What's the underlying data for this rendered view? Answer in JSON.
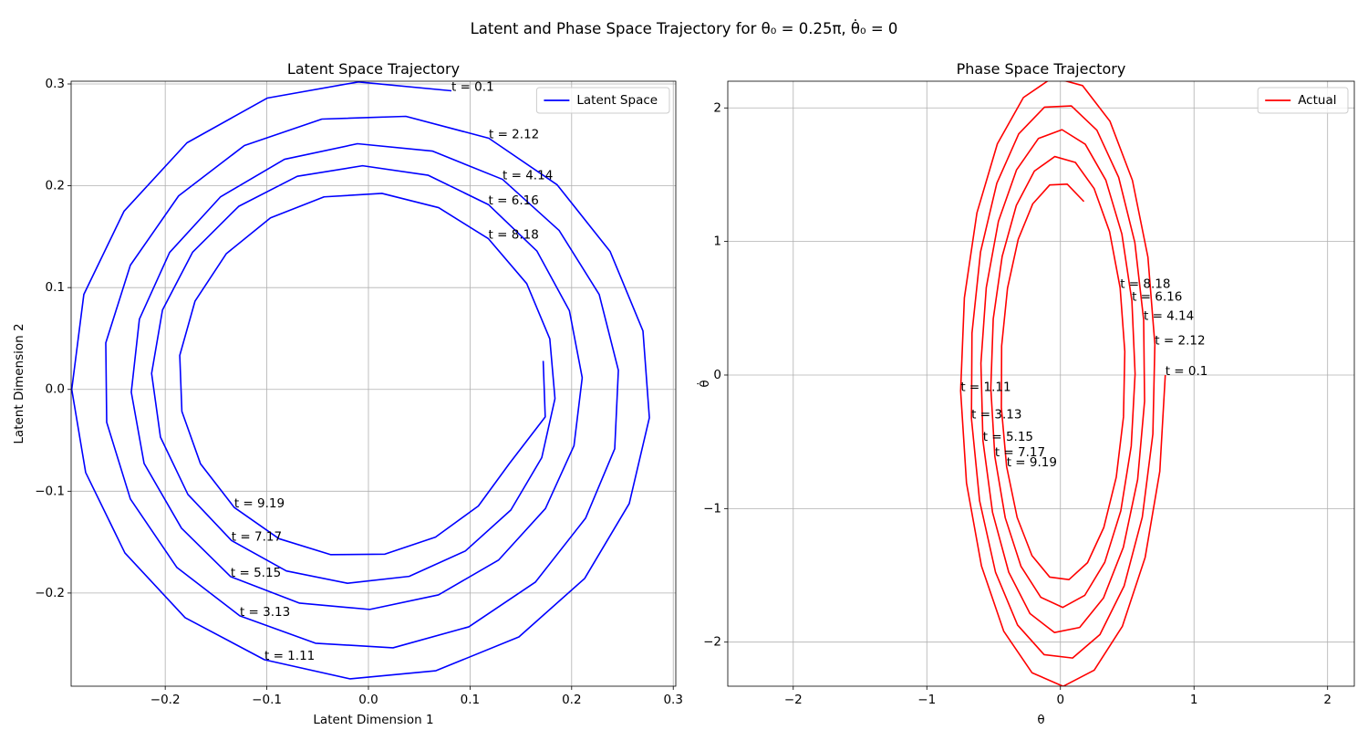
{
  "suptitle": "Latent and Phase Space Trajectory for θ₀ = 0.25π, θ̇₀ = 0",
  "chart_data": [
    {
      "type": "line",
      "title": "Latent Space Trajectory",
      "xlabel": "Latent Dimension 1",
      "ylabel": "Latent Dimension 2",
      "x": [
        0.0817,
        -0.0099,
        -0.0997,
        -0.1786,
        -0.2406,
        -0.2801,
        -0.292,
        -0.2783,
        -0.2397,
        -0.1804,
        -0.1023,
        -0.018,
        0.0664,
        0.1481,
        0.2128,
        0.2567,
        0.2765,
        0.2702,
        0.2379,
        0.1858,
        0.1185,
        0.0368,
        -0.0458,
        -0.1221,
        -0.1868,
        -0.2343,
        -0.2585,
        -0.2576,
        -0.2343,
        -0.1885,
        -0.1266,
        -0.0521,
        0.0242,
        0.0988,
        0.1643,
        0.2137,
        0.2424,
        0.246,
        0.2271,
        0.1877,
        0.132,
        0.0629,
        -0.0108,
        -0.0826,
        -0.1455,
        -0.1957,
        -0.2254,
        -0.2334,
        -0.2208,
        -0.184,
        -0.1356,
        -0.0678,
        0.0013,
        0.0689,
        0.1282,
        0.1742,
        0.2023,
        0.2104,
        0.1978,
        0.1659,
        0.1181,
        0.0589,
        -0.0058,
        -0.07,
        -0.1277,
        -0.1731,
        -0.2027,
        -0.2134,
        -0.2047,
        -0.1777,
        -0.1348,
        -0.0808,
        -0.0206,
        0.0401,
        0.0954,
        0.1402,
        0.1706,
        0.1836,
        0.1785,
        0.1558,
        0.1181,
        0.0691,
        0.0133,
        -0.0437,
        -0.0964,
        -0.14,
        -0.1707,
        -0.1857,
        -0.1836,
        -0.1653,
        -0.1321,
        -0.0881,
        -0.037,
        0.0162,
        0.066,
        0.1082,
        0.1388,
        0.174,
        0.172
      ],
      "series": [
        {
          "name": "Latent Space",
          "color": "#0000ff",
          "values": [
            0.2933,
            0.302,
            0.2861,
            0.2422,
            0.1749,
            0.0933,
            0,
            -0.0816,
            -0.1606,
            -0.2242,
            -0.2655,
            -0.2843,
            -0.2763,
            -0.2431,
            -0.1857,
            -0.1121,
            -0.0278,
            0.0574,
            0.1354,
            0.2009,
            0.2467,
            0.2682,
            0.2655,
            0.2395,
            0.1901,
            0.122,
            0.0457,
            -0.0323,
            -0.1076,
            -0.1749,
            -0.2224,
            -0.2493,
            -0.2538,
            -0.2332,
            -0.1893,
            -0.1265,
            -0.0583,
            0.0188,
            0.0933,
            0.1561,
            0.2063,
            0.2341,
            0.2413,
            0.226,
            0.1892,
            0.1345,
            0.0691,
            -0.0027,
            -0.0727,
            -0.1363,
            -0.1839,
            -0.2099,
            -0.2161,
            -0.2018,
            -0.1675,
            -0.117,
            -0.0553,
            0.0115,
            0.0773,
            0.1358,
            0.1815,
            0.2103,
            0.2197,
            0.2093,
            0.1798,
            0.1347,
            0.078,
            0.0157,
            -0.0468,
            -0.1031,
            -0.1484,
            -0.1783,
            -0.1904,
            -0.1836,
            -0.1587,
            -0.1184,
            -0.067,
            -0.009,
            0.0497,
            0.1039,
            0.148,
            0.1785,
            0.1925,
            0.1891,
            0.1685,
            0.1332,
            0.0866,
            0.0334,
            -0.0216,
            -0.073,
            -0.1159,
            -0.1466,
            -0.1623,
            -0.1618,
            -0.1451,
            -0.1145,
            -0.0727,
            -0.027,
            0.028
          ]
        }
      ],
      "annotations": [
        {
          "text": "t = 0.1",
          "x": 0.0817,
          "y": 0.2933
        },
        {
          "text": "t = 1.11",
          "x": -0.1023,
          "y": -0.2655
        },
        {
          "text": "t = 2.12",
          "x": 0.1185,
          "y": 0.2467
        },
        {
          "text": "t = 3.13",
          "x": -0.1266,
          "y": -0.2224
        },
        {
          "text": "t = 4.14",
          "x": 0.132,
          "y": 0.2063
        },
        {
          "text": "t = 5.15",
          "x": -0.1356,
          "y": -0.1839
        },
        {
          "text": "t = 6.16",
          "x": 0.1181,
          "y": 0.1815
        },
        {
          "text": "t = 7.17",
          "x": -0.1348,
          "y": -0.1484
        },
        {
          "text": "t = 8.18",
          "x": 0.1181,
          "y": 0.148
        },
        {
          "text": "t = 9.19",
          "x": -0.1321,
          "y": -0.1159
        }
      ],
      "xlim": [
        -0.2926,
        0.3025
      ],
      "ylim": [
        -0.2915,
        0.3027
      ],
      "xticks": [
        {
          "value": -0.2,
          "label": "−0.2"
        },
        {
          "value": -0.1,
          "label": "−0.1"
        },
        {
          "value": 0,
          "label": "0.0"
        },
        0.1,
        0.2,
        0.3
      ],
      "yticks": [
        {
          "value": -0.2,
          "label": "−0.2"
        },
        {
          "value": -0.1,
          "label": "−0.1"
        },
        {
          "value": 0,
          "label": "0.0"
        },
        0.1,
        0.2,
        0.3
      ],
      "grid": true,
      "legend": "upper right"
    },
    {
      "type": "line",
      "title": "Phase Space Trajectory",
      "xlabel": "θ",
      "ylabel": "θ̇",
      "x": [
        0.785,
        0.744,
        0.634,
        0.464,
        0.253,
        0.02,
        -0.213,
        -0.424,
        -0.591,
        -0.703,
        -0.747,
        -0.719,
        -0.625,
        -0.472,
        -0.277,
        -0.057,
        0.166,
        0.371,
        0.539,
        0.655,
        0.707,
        0.692,
        0.613,
        0.477,
        0.296,
        0.091,
        -0.122,
        -0.321,
        -0.486,
        -0.605,
        -0.666,
        -0.662,
        -0.598,
        -0.476,
        -0.312,
        -0.119,
        0.082,
        0.273,
        0.436,
        0.557,
        0.623,
        0.63,
        0.578,
        0.471,
        0.322,
        0.144,
        -0.045,
        -0.228,
        -0.387,
        -0.508,
        -0.58,
        -0.595,
        -0.555,
        -0.464,
        -0.329,
        -0.165,
        0.012,
        0.186,
        0.34,
        0.46,
        0.535,
        0.559,
        0.53,
        0.452,
        0.332,
        0.182,
        0.017,
        -0.147,
        -0.295,
        -0.413,
        -0.491,
        -0.521,
        -0.503,
        -0.436,
        -0.33,
        -0.195,
        -0.042,
        0.112,
        0.252,
        0.368,
        0.447,
        0.482,
        0.472,
        0.418,
        0.325,
        0.203,
        0.064,
        -0.08,
        -0.213,
        -0.324,
        -0.403,
        -0.442,
        -0.44,
        -0.396,
        -0.316,
        -0.207,
        -0.08,
        0.051,
        0.176
      ],
      "series": [
        {
          "name": "Actual",
          "color": "#ff0000",
          "values": [
            0,
            -0.721,
            -1.367,
            -1.881,
            -2.21,
            -2.331,
            -2.229,
            -1.919,
            -1.43,
            -0.809,
            -0.119,
            0.577,
            1.214,
            1.731,
            2.078,
            2.228,
            2.167,
            1.9,
            1.458,
            0.883,
            0.23,
            -0.442,
            -1.064,
            -1.579,
            -1.943,
            -2.119,
            -2.094,
            -1.872,
            -1.476,
            -0.942,
            -0.326,
            0.314,
            0.921,
            1.436,
            1.806,
            2.006,
            2.015,
            1.833,
            1.48,
            0.993,
            0.414,
            -0.196,
            -0.783,
            -1.29,
            -1.67,
            -1.89,
            -1.928,
            -1.786,
            -1.476,
            -1.029,
            -0.491,
            0.089,
            0.655,
            1.151,
            1.535,
            1.771,
            1.837,
            1.728,
            1.459,
            1.056,
            0.556,
            0.009,
            -0.532,
            -1.017,
            -1.402,
            -1.65,
            -1.74,
            -1.664,
            -1.433,
            -1.069,
            -0.609,
            -0.098,
            0.419,
            0.888,
            1.27,
            1.527,
            1.636,
            1.592,
            1.397,
            1.073,
            0.653,
            0.175,
            -0.314,
            -0.765,
            -1.141,
            -1.405,
            -1.532,
            -1.513,
            -1.352,
            -1.066,
            -0.684,
            -0.243,
            0.217,
            0.65,
            1.016,
            1.282,
            1.423,
            1.429,
            1.299
          ]
        }
      ],
      "annotations": [
        {
          "text": "t = 0.1",
          "x": 0.785,
          "y": 0
        },
        {
          "text": "t = 1.11",
          "x": -0.747,
          "y": -0.119
        },
        {
          "text": "t = 2.12",
          "x": 0.707,
          "y": 0.23
        },
        {
          "text": "t = 3.13",
          "x": -0.666,
          "y": -0.326
        },
        {
          "text": "t = 4.14",
          "x": 0.623,
          "y": 0.414
        },
        {
          "text": "t = 5.15",
          "x": -0.58,
          "y": -0.491
        },
        {
          "text": "t = 6.16",
          "x": 0.535,
          "y": 0.556
        },
        {
          "text": "t = 7.17",
          "x": -0.491,
          "y": -0.609
        },
        {
          "text": "t = 8.18",
          "x": 0.447,
          "y": 0.653
        },
        {
          "text": "t = 9.19",
          "x": -0.403,
          "y": -0.684
        }
      ],
      "xlim": [
        -2.49,
        2.2
      ],
      "ylim": [
        -2.33,
        2.2
      ],
      "xticks": [
        {
          "value": -2,
          "label": "−2"
        },
        {
          "value": -1,
          "label": "−1"
        },
        0,
        1,
        2
      ],
      "yticks": [
        {
          "value": -2,
          "label": "−2"
        },
        {
          "value": -1,
          "label": "−1"
        },
        0,
        1,
        2
      ],
      "grid": true,
      "legend": "upper right"
    }
  ]
}
